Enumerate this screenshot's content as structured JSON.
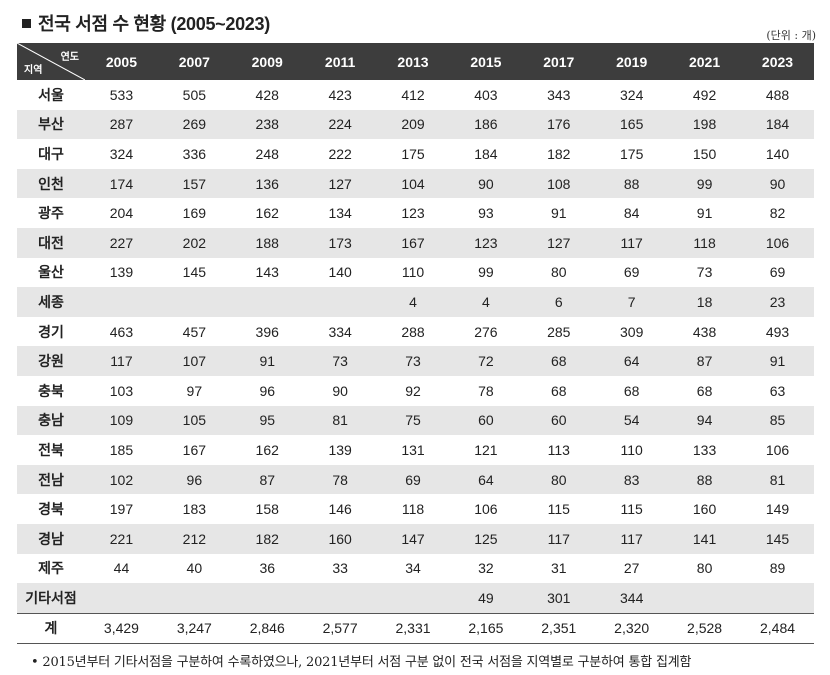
{
  "title": "전국 서점 수 현황 (2005~2023)",
  "unit_note": "(단위 : 개)",
  "table": {
    "corner_top": "연도",
    "corner_bottom": "지역",
    "years": [
      "2005",
      "2007",
      "2009",
      "2011",
      "2013",
      "2015",
      "2017",
      "2019",
      "2021",
      "2023"
    ],
    "rows": [
      {
        "region": "서울",
        "values": [
          "533",
          "505",
          "428",
          "423",
          "412",
          "403",
          "343",
          "324",
          "492",
          "488"
        ]
      },
      {
        "region": "부산",
        "values": [
          "287",
          "269",
          "238",
          "224",
          "209",
          "186",
          "176",
          "165",
          "198",
          "184"
        ]
      },
      {
        "region": "대구",
        "values": [
          "324",
          "336",
          "248",
          "222",
          "175",
          "184",
          "182",
          "175",
          "150",
          "140"
        ]
      },
      {
        "region": "인천",
        "values": [
          "174",
          "157",
          "136",
          "127",
          "104",
          "90",
          "108",
          "88",
          "99",
          "90"
        ]
      },
      {
        "region": "광주",
        "values": [
          "204",
          "169",
          "162",
          "134",
          "123",
          "93",
          "91",
          "84",
          "91",
          "82"
        ]
      },
      {
        "region": "대전",
        "values": [
          "227",
          "202",
          "188",
          "173",
          "167",
          "123",
          "127",
          "117",
          "118",
          "106"
        ]
      },
      {
        "region": "울산",
        "values": [
          "139",
          "145",
          "143",
          "140",
          "110",
          "99",
          "80",
          "69",
          "73",
          "69"
        ]
      },
      {
        "region": "세종",
        "values": [
          "",
          "",
          "",
          "",
          "4",
          "4",
          "6",
          "7",
          "18",
          "23"
        ]
      },
      {
        "region": "경기",
        "values": [
          "463",
          "457",
          "396",
          "334",
          "288",
          "276",
          "285",
          "309",
          "438",
          "493"
        ]
      },
      {
        "region": "강원",
        "values": [
          "117",
          "107",
          "91",
          "73",
          "73",
          "72",
          "68",
          "64",
          "87",
          "91"
        ]
      },
      {
        "region": "충북",
        "values": [
          "103",
          "97",
          "96",
          "90",
          "92",
          "78",
          "68",
          "68",
          "68",
          "63"
        ]
      },
      {
        "region": "충남",
        "values": [
          "109",
          "105",
          "95",
          "81",
          "75",
          "60",
          "60",
          "54",
          "94",
          "85"
        ]
      },
      {
        "region": "전북",
        "values": [
          "185",
          "167",
          "162",
          "139",
          "131",
          "121",
          "113",
          "110",
          "133",
          "106"
        ]
      },
      {
        "region": "전남",
        "values": [
          "102",
          "96",
          "87",
          "78",
          "69",
          "64",
          "80",
          "83",
          "88",
          "81"
        ]
      },
      {
        "region": "경북",
        "values": [
          "197",
          "183",
          "158",
          "146",
          "118",
          "106",
          "115",
          "115",
          "160",
          "149"
        ]
      },
      {
        "region": "경남",
        "values": [
          "221",
          "212",
          "182",
          "160",
          "147",
          "125",
          "117",
          "117",
          "141",
          "145"
        ]
      },
      {
        "region": "제주",
        "values": [
          "44",
          "40",
          "36",
          "33",
          "34",
          "32",
          "31",
          "27",
          "80",
          "89"
        ]
      },
      {
        "region": "기타서점",
        "values": [
          "",
          "",
          "",
          "",
          "",
          "49",
          "301",
          "344",
          "",
          ""
        ]
      }
    ],
    "total": {
      "region": "계",
      "values": [
        "3,429",
        "3,247",
        "2,846",
        "2,577",
        "2,331",
        "2,165",
        "2,351",
        "2,320",
        "2,528",
        "2,484"
      ]
    }
  },
  "footnote": "• 2015년부터 기타서점을 구분하여 수록하였으나, 2021년부터 서점 구분 없이 전국 서점을 지역별로 구분하여 통합 집계함"
}
